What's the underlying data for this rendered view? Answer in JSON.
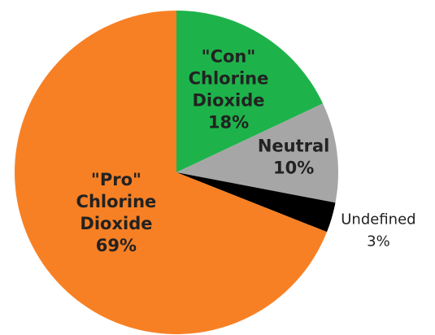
{
  "chart_data": {
    "type": "pie",
    "categories": [
      "\"Con\" Chlorine Dioxide",
      "Neutral",
      "Undefined",
      "\"Pro\" Chlorine Dioxide"
    ],
    "values": [
      18,
      10,
      3,
      69
    ],
    "value_labels": [
      "18%",
      "10%",
      "3%",
      "69%"
    ],
    "colors": [
      "#1db34a",
      "#a6a6a6",
      "#000000",
      "#f88024"
    ]
  }
}
